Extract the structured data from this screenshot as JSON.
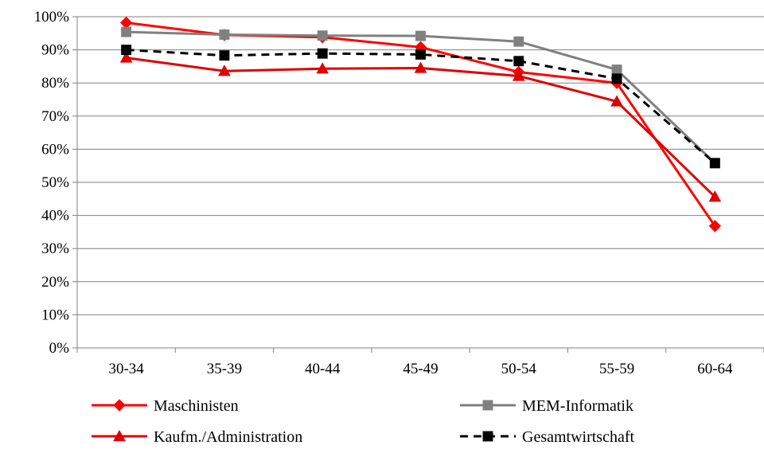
{
  "chart_data": {
    "type": "line",
    "title": "",
    "xlabel": "",
    "ylabel": "",
    "categories": [
      "30-34",
      "35-39",
      "40-44",
      "45-49",
      "50-54",
      "55-59",
      "60-64"
    ],
    "y_tick_labels": [
      "0%",
      "10%",
      "20%",
      "30%",
      "40%",
      "50%",
      "60%",
      "70%",
      "80%",
      "90%",
      "100%"
    ],
    "ylim": [
      0,
      100
    ],
    "y_unit": "%",
    "grid": "horizontal",
    "legend_position": "bottom",
    "series": [
      {
        "name": "Maschinisten",
        "color": "#ff0000",
        "marker": "diamond",
        "dash": "solid",
        "values": [
          98.2,
          94.5,
          93.8,
          90.8,
          83.3,
          80.0,
          36.8
        ]
      },
      {
        "name": "MEM-Informatik",
        "color": "#808080",
        "marker": "square",
        "dash": "solid",
        "values": [
          95.4,
          94.6,
          94.3,
          94.2,
          92.5,
          84.0,
          55.8
        ]
      },
      {
        "name": "Kaufm./Administration",
        "color": "#e00000",
        "marker": "triangle",
        "dash": "solid",
        "values": [
          87.6,
          83.6,
          84.3,
          84.5,
          82.1,
          74.4,
          45.6
        ]
      },
      {
        "name": "Gesamtwirtschaft",
        "color": "#000000",
        "marker": "square",
        "dash": "dashed",
        "values": [
          90.0,
          88.3,
          88.9,
          88.6,
          86.6,
          81.3,
          55.8
        ]
      }
    ]
  }
}
